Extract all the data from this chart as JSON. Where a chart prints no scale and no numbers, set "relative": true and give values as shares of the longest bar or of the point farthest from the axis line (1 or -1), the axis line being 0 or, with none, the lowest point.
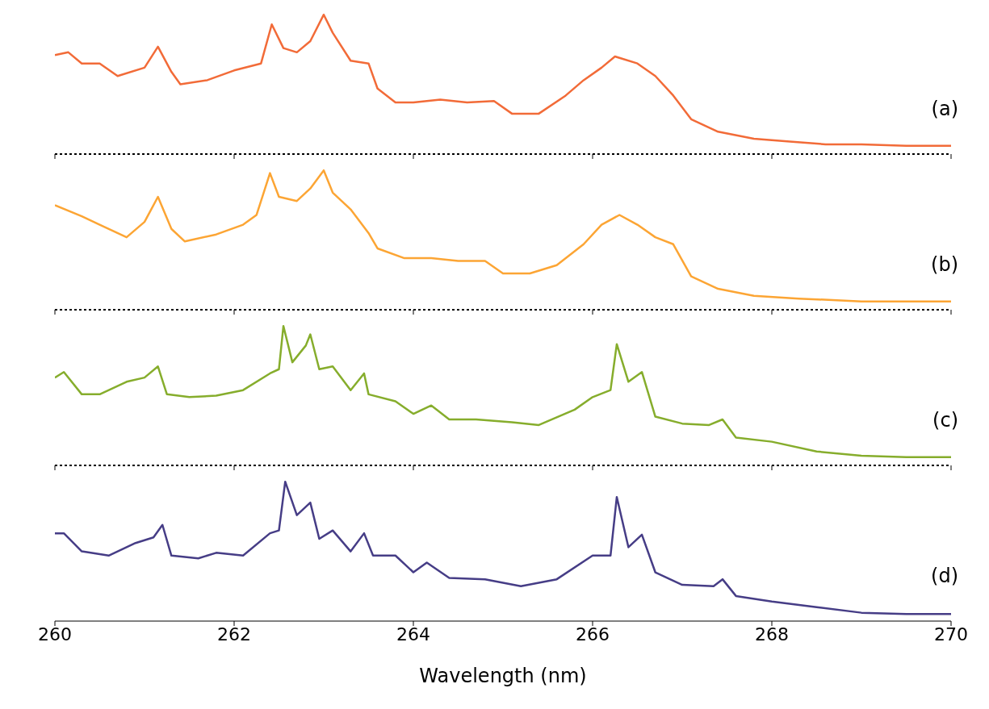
{
  "chart_data": [
    {
      "type": "line",
      "relative": true,
      "color": "#f26b38",
      "xlim": [
        260,
        270
      ],
      "xticks": [
        260,
        262,
        264,
        266,
        268,
        270
      ],
      "tick_labels": false,
      "annotations": [
        "(a)"
      ],
      "ref_lines": [
        {
          "axis": "y",
          "value": 0,
          "line_style": "dotted",
          "color": "#000000"
        }
      ],
      "x": [
        260,
        260.15,
        260.3,
        260.5,
        260.7,
        261,
        261.15,
        261.3,
        261.4,
        261.7,
        262,
        262.3,
        262.42,
        262.55,
        262.7,
        262.85,
        263,
        263.1,
        263.3,
        263.5,
        263.6,
        263.8,
        264,
        264.3,
        264.6,
        264.9,
        265.1,
        265.4,
        265.7,
        265.9,
        266.1,
        266.25,
        266.5,
        266.7,
        266.9,
        267.1,
        267.4,
        267.8,
        268.2,
        268.6,
        269,
        269.5,
        270
      ],
      "values": [
        0.71,
        0.73,
        0.65,
        0.65,
        0.56,
        0.62,
        0.77,
        0.59,
        0.5,
        0.53,
        0.6,
        0.65,
        0.93,
        0.76,
        0.73,
        0.81,
        1,
        0.87,
        0.67,
        0.65,
        0.47,
        0.37,
        0.37,
        0.39,
        0.37,
        0.38,
        0.29,
        0.29,
        0.42,
        0.53,
        0.62,
        0.7,
        0.65,
        0.56,
        0.42,
        0.25,
        0.16,
        0.11,
        0.09,
        0.07,
        0.07,
        0.06,
        0.06
      ]
    },
    {
      "type": "line",
      "relative": true,
      "color": "#fca534",
      "xlim": [
        260,
        270
      ],
      "xticks": [
        260,
        262,
        264,
        266,
        268,
        270
      ],
      "tick_labels": false,
      "annotations": [
        "(b)"
      ],
      "ref_lines": [
        {
          "axis": "y",
          "value": 0,
          "line_style": "dotted",
          "color": "#000000"
        }
      ],
      "x": [
        260,
        260.3,
        260.5,
        260.8,
        261,
        261.15,
        261.3,
        261.45,
        261.8,
        262.1,
        262.25,
        262.4,
        262.5,
        262.7,
        262.85,
        263,
        263.1,
        263.3,
        263.5,
        263.6,
        263.9,
        264.2,
        264.5,
        264.8,
        265,
        265.3,
        265.6,
        265.9,
        266.1,
        266.3,
        266.5,
        266.7,
        266.9,
        267.1,
        267.4,
        267.8,
        268.3,
        269,
        270
      ],
      "values": [
        0.75,
        0.67,
        0.61,
        0.52,
        0.63,
        0.81,
        0.58,
        0.49,
        0.54,
        0.61,
        0.68,
        0.98,
        0.81,
        0.78,
        0.87,
        1,
        0.84,
        0.72,
        0.55,
        0.44,
        0.37,
        0.37,
        0.35,
        0.35,
        0.26,
        0.26,
        0.32,
        0.47,
        0.61,
        0.68,
        0.61,
        0.52,
        0.47,
        0.24,
        0.15,
        0.1,
        0.08,
        0.06,
        0.06
      ]
    },
    {
      "type": "line",
      "relative": true,
      "color": "#86ad2c",
      "xlim": [
        260,
        270
      ],
      "xticks": [
        260,
        262,
        264,
        266,
        268,
        270
      ],
      "tick_labels": false,
      "annotations": [
        "(c)"
      ],
      "ref_lines": [
        {
          "axis": "y",
          "value": 0,
          "line_style": "dotted",
          "color": "#000000"
        }
      ],
      "x": [
        260,
        260.1,
        260.3,
        260.5,
        260.8,
        261,
        261.15,
        261.25,
        261.5,
        261.8,
        262.1,
        262.4,
        262.5,
        262.55,
        262.65,
        262.8,
        262.85,
        262.95,
        263.1,
        263.3,
        263.45,
        263.5,
        263.8,
        264,
        264.2,
        264.4,
        264.7,
        265.1,
        265.4,
        265.8,
        266,
        266.2,
        266.27,
        266.4,
        266.55,
        266.7,
        267,
        267.3,
        267.45,
        267.6,
        268,
        268.5,
        269,
        269.5,
        270
      ],
      "values": [
        0.63,
        0.67,
        0.51,
        0.51,
        0.6,
        0.63,
        0.71,
        0.51,
        0.49,
        0.5,
        0.54,
        0.66,
        0.69,
        1,
        0.74,
        0.86,
        0.94,
        0.69,
        0.71,
        0.54,
        0.66,
        0.51,
        0.46,
        0.37,
        0.43,
        0.33,
        0.33,
        0.31,
        0.29,
        0.4,
        0.49,
        0.54,
        0.87,
        0.6,
        0.67,
        0.35,
        0.3,
        0.29,
        0.33,
        0.2,
        0.17,
        0.1,
        0.07,
        0.06,
        0.06
      ]
    },
    {
      "type": "line",
      "relative": true,
      "color": "#463d86",
      "xlim": [
        260,
        270
      ],
      "xticks": [
        260,
        262,
        264,
        266,
        268,
        270
      ],
      "xlabel": "Wavelength (nm)",
      "annotations": [
        "(d)"
      ],
      "x": [
        260,
        260.1,
        260.3,
        260.6,
        260.9,
        261.1,
        261.2,
        261.3,
        261.6,
        261.8,
        262.1,
        262.4,
        262.5,
        262.57,
        262.7,
        262.85,
        262.95,
        263.1,
        263.3,
        263.45,
        263.55,
        263.8,
        264,
        264.15,
        264.4,
        264.8,
        265.2,
        265.6,
        266,
        266.2,
        266.27,
        266.4,
        266.55,
        266.7,
        267,
        267.35,
        267.45,
        267.6,
        268,
        268.5,
        269,
        269.5,
        270
      ],
      "values": [
        0.63,
        0.63,
        0.5,
        0.47,
        0.56,
        0.6,
        0.69,
        0.47,
        0.45,
        0.49,
        0.47,
        0.63,
        0.65,
        1,
        0.76,
        0.85,
        0.59,
        0.65,
        0.5,
        0.63,
        0.47,
        0.47,
        0.35,
        0.42,
        0.31,
        0.3,
        0.25,
        0.3,
        0.47,
        0.47,
        0.89,
        0.53,
        0.62,
        0.35,
        0.26,
        0.25,
        0.3,
        0.18,
        0.14,
        0.1,
        0.06,
        0.05,
        0.05
      ]
    }
  ]
}
